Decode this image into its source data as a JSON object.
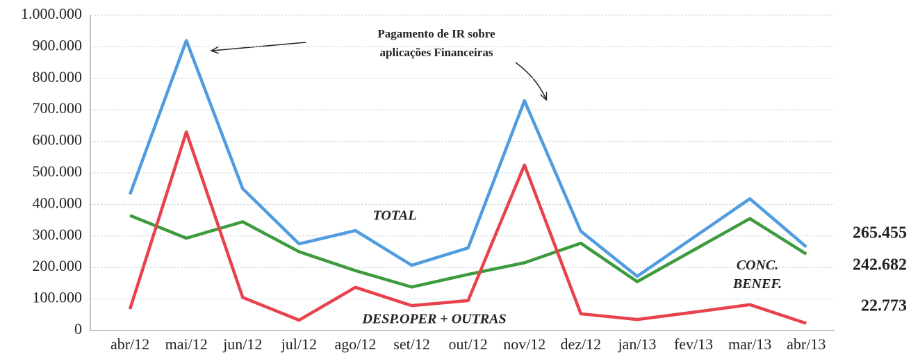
{
  "chart_data": {
    "type": "line",
    "categories": [
      "abr/12",
      "mai/12",
      "jun/12",
      "jul/12",
      "ago/12",
      "set/12",
      "out/12",
      "nov/12",
      "dez/12",
      "jan/13",
      "fev/13",
      "mar/13",
      "abr/13"
    ],
    "series": [
      {
        "name": "TOTAL",
        "color": "#4f9ce0",
        "values": [
          432000,
          920000,
          450000,
          275000,
          317000,
          207000,
          262000,
          729000,
          315000,
          172000,
          295000,
          418000,
          265455
        ],
        "value_labels": [
          null,
          null,
          null,
          null,
          null,
          null,
          null,
          null,
          null,
          null,
          null,
          null,
          "265.455"
        ]
      },
      {
        "name": "CONC. BENEF.",
        "color": "#3d9a3d",
        "values": [
          365000,
          293000,
          345000,
          250000,
          190000,
          138000,
          178000,
          215000,
          277000,
          155000,
          255000,
          355000,
          242682
        ],
        "value_labels": [
          null,
          null,
          null,
          null,
          null,
          null,
          null,
          null,
          null,
          null,
          null,
          null,
          "242.682"
        ]
      },
      {
        "name": "DESP.OPER + OUTRAS",
        "color": "#e8424c",
        "values": [
          68000,
          630000,
          105000,
          33000,
          137000,
          79000,
          95000,
          525000,
          53000,
          35000,
          58000,
          82000,
          22773
        ],
        "value_labels": [
          null,
          null,
          null,
          null,
          null,
          null,
          null,
          null,
          null,
          null,
          null,
          null,
          "22.773"
        ]
      }
    ],
    "annotation": [
      "Pagamento de IR sobre",
      "aplicações Financeiras"
    ],
    "ylim": [
      0,
      1000000
    ],
    "yticks": [
      0,
      {
        "value": 100000,
        "label": "100.000"
      },
      {
        "value": 200000,
        "label": "200.000"
      },
      {
        "value": 300000,
        "label": "300.000"
      },
      {
        "value": 400000,
        "label": "400.000"
      },
      {
        "value": 500000,
        "label": "500.000"
      },
      {
        "value": 600000,
        "label": "600.000"
      },
      {
        "value": 700000,
        "label": "700.000"
      },
      {
        "value": 800000,
        "label": "800.000"
      },
      {
        "value": 900000,
        "label": "900.000"
      },
      {
        "value": 1000000,
        "label": "1.000.000"
      }
    ],
    "grid": true
  }
}
